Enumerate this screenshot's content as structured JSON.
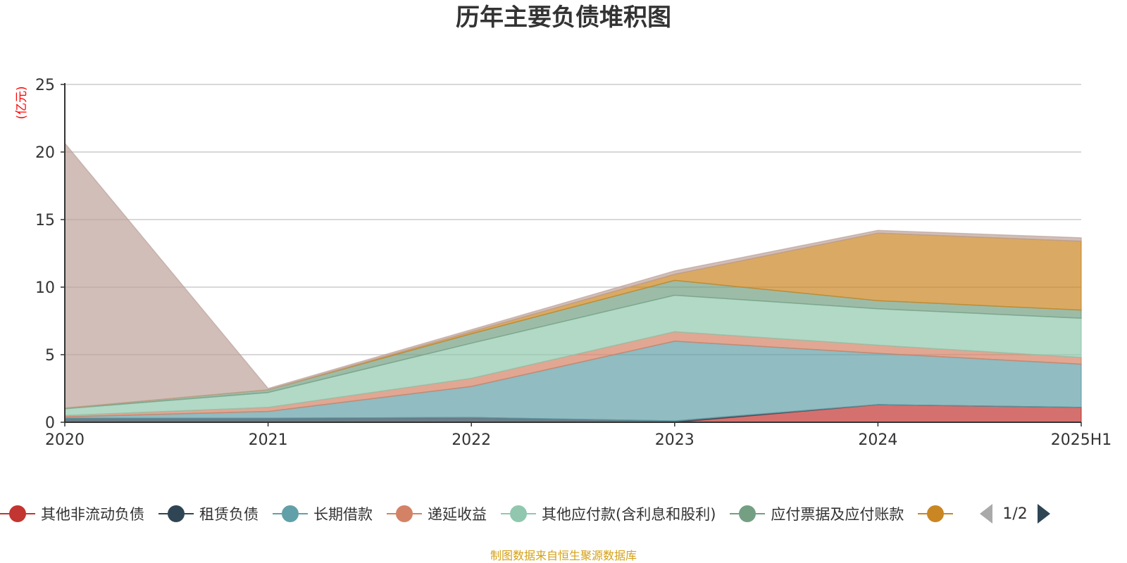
{
  "chart_data": {
    "type": "area",
    "stacked": true,
    "title": "历年主要负债堆积图",
    "unit_label": "(亿元)",
    "x": [
      "2020",
      "2021",
      "2022",
      "2023",
      "2024",
      "2025H1"
    ],
    "ylim": [
      0,
      25
    ],
    "yticks": [
      0,
      5,
      10,
      15,
      20,
      25
    ],
    "grid": true,
    "legend_position": "bottom",
    "series": [
      {
        "name": "其他非流动负债",
        "color": "#c23531",
        "values": [
          0,
          0,
          0,
          0,
          1.3,
          1.1
        ]
      },
      {
        "name": "租赁负债",
        "color": "#2f4554",
        "values": [
          0.3,
          0.3,
          0.35,
          0.1,
          0,
          0
        ]
      },
      {
        "name": "长期借款",
        "color": "#61a0a8",
        "values": [
          0.1,
          0.5,
          2.3,
          5.9,
          3.8,
          3.2
        ]
      },
      {
        "name": "递延收益",
        "color": "#d48265",
        "values": [
          0.1,
          0.3,
          0.6,
          0.7,
          0.6,
          0.5
        ]
      },
      {
        "name": "其他应付款(含利息和股利)",
        "color": "#91c7ae",
        "values": [
          0.5,
          1.1,
          2.6,
          2.7,
          2.7,
          2.9
        ]
      },
      {
        "name": "应付票据及应付账款",
        "color": "#749f83",
        "values": [
          0.05,
          0.2,
          0.7,
          1.1,
          0.6,
          0.6
        ]
      },
      {
        "name": "",
        "color": "#ca8622",
        "values": [
          0,
          0,
          0.15,
          0.45,
          5.0,
          5.1
        ]
      },
      {
        "name": "",
        "color": "#bda29a",
        "values": [
          19.6,
          0.1,
          0.15,
          0.25,
          0.2,
          0.25
        ]
      }
    ]
  },
  "legend": {
    "page_text": "1/2"
  },
  "footer": "制图数据来自恒生聚源数据库"
}
